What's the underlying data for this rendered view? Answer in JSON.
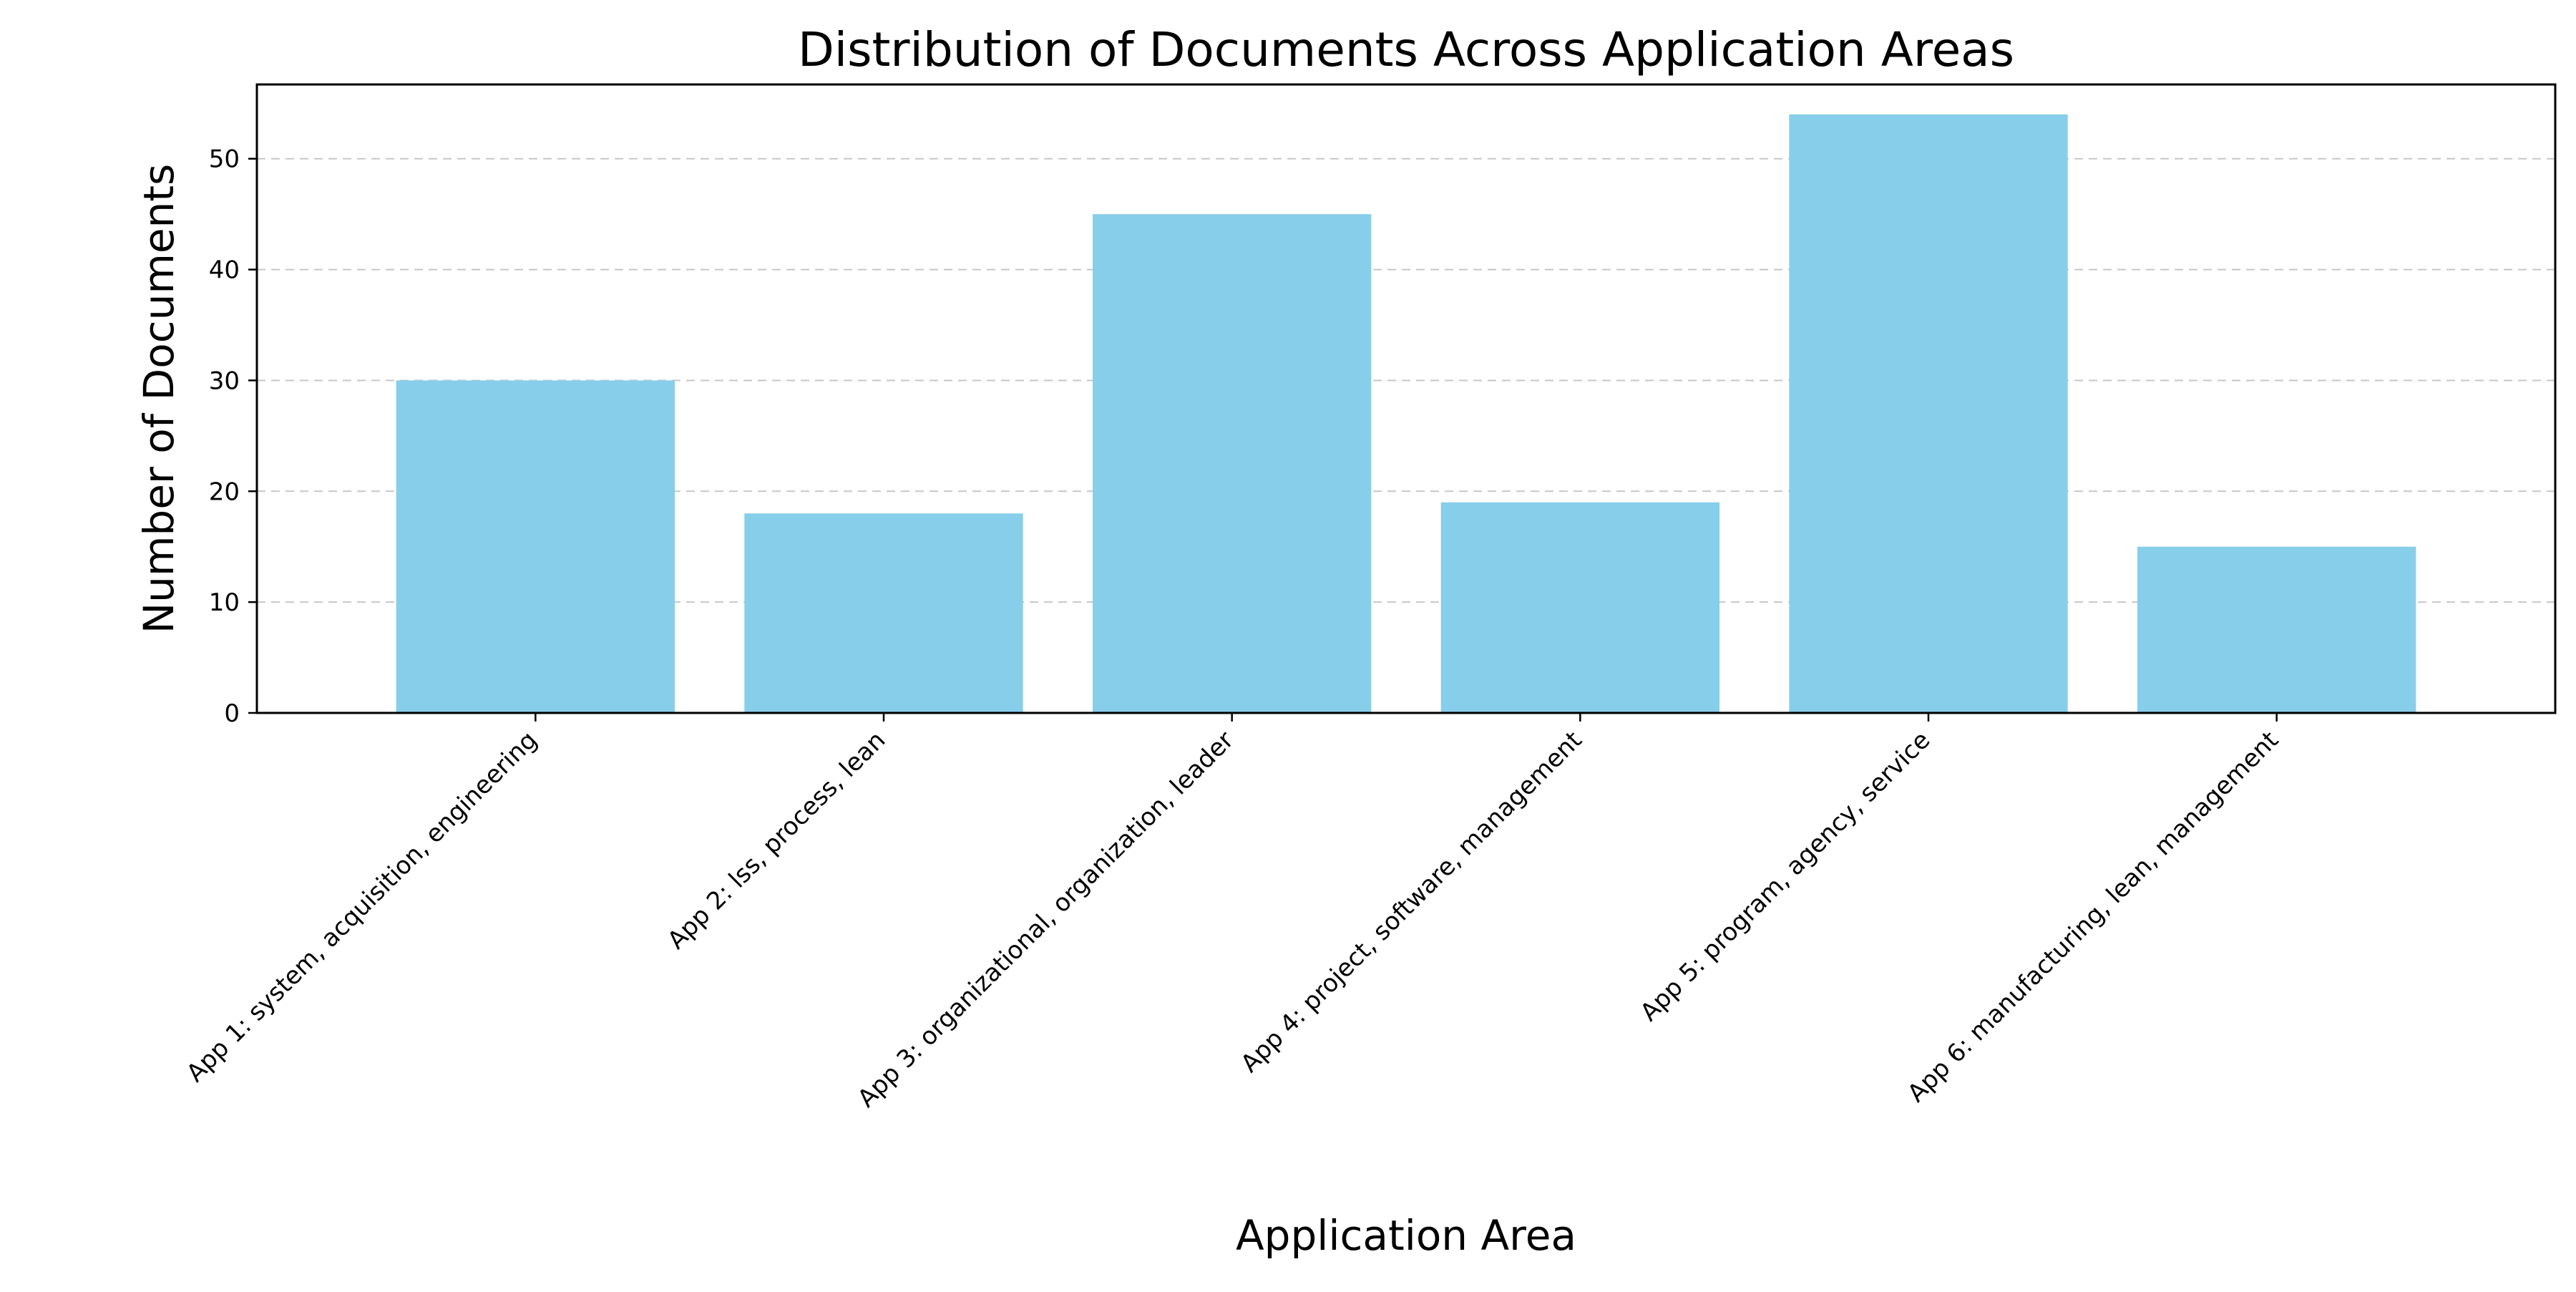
{
  "chart_data": {
    "type": "bar",
    "title": "Distribution of Documents Across Application Areas",
    "xlabel": "Application Area",
    "ylabel": "Number of Documents",
    "categories": [
      "App 1: system, acquisition, engineering",
      "App 2: lss, process, lean",
      "App 3: organizational, organization, leader",
      "App 4: project, software, management",
      "App 5: program, agency, service",
      "App 6: manufacturing, lean, management"
    ],
    "values": [
      30,
      18,
      45,
      19,
      54,
      15
    ],
    "ylim": [
      0,
      56.7
    ],
    "yticks": [
      0,
      10,
      20,
      30,
      40,
      50
    ],
    "bar_color": "#87CEEB",
    "grid": "y-dashed",
    "legend": "none"
  }
}
